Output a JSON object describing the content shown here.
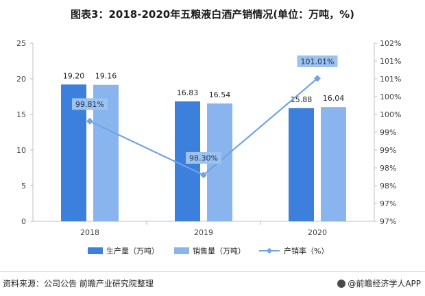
{
  "title": "图表3：2018-2020年五粮液白酒产销情况(单位：万吨，%)",
  "source": "资料来源：公司公告 前瞻产业研究院整理",
  "brand": "@前瞻经济学人APP",
  "colors": {
    "production": "#3d7fdc",
    "sales": "#8ab4ee",
    "rate": "#6fa3e8",
    "rate_label_bg": "#9cc2f0",
    "axis": "#bfbfbf",
    "tick_text": "#404040"
  },
  "chart_data": {
    "type": "bar",
    "categories": [
      "2018",
      "2019",
      "2020"
    ],
    "series": [
      {
        "name": "生产量（万吨）",
        "kind": "bar",
        "axis": "left",
        "values": [
          19.2,
          16.83,
          15.88
        ],
        "labels": [
          "19.20",
          "16.83",
          "15.88"
        ]
      },
      {
        "name": "销售量（万吨）",
        "kind": "bar",
        "axis": "left",
        "values": [
          19.16,
          16.54,
          16.04
        ],
        "labels": [
          "19.16",
          "16.54",
          "16.04"
        ]
      },
      {
        "name": "产销率（%）",
        "kind": "line",
        "axis": "right",
        "values": [
          99.81,
          98.3,
          101.01
        ],
        "labels": [
          "99.81%",
          "98.30%",
          "101.01%"
        ]
      }
    ],
    "y_left": {
      "min": 0,
      "max": 25,
      "ticks": [
        "0",
        "5",
        "10",
        "15",
        "20",
        "25"
      ]
    },
    "y_right": {
      "min": 97,
      "max": 102,
      "ticks": [
        "97%",
        "97%",
        "98%",
        "98%",
        "99%",
        "99%",
        "100%",
        "100%",
        "101%",
        "101%",
        "102%"
      ]
    },
    "grid": false,
    "legend_position": "bottom"
  }
}
